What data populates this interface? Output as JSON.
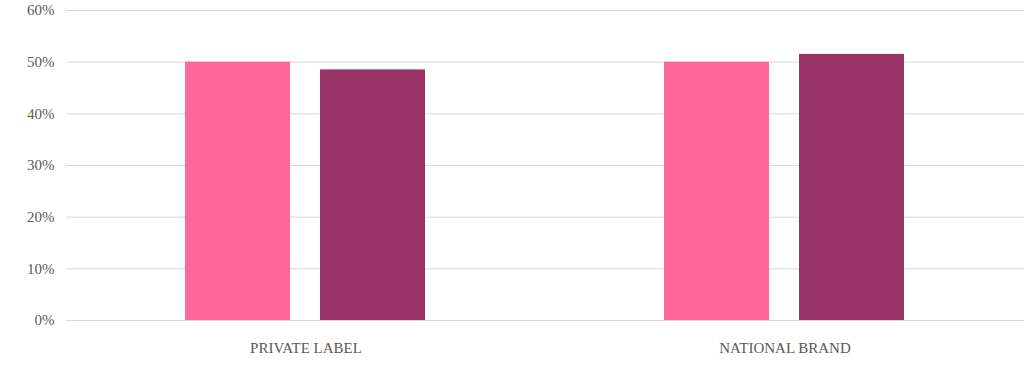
{
  "chart_data": {
    "type": "bar",
    "categories": [
      "PRIVATE LABEL",
      "NATIONAL BRAND"
    ],
    "series": [
      {
        "color": "#ff6699",
        "values": [
          50,
          50
        ]
      },
      {
        "color": "#993366",
        "values": [
          48.5,
          51.5
        ]
      }
    ],
    "ylim": [
      0,
      60
    ],
    "yticks": [
      {
        "value": 0,
        "label": "0%"
      },
      {
        "value": 10,
        "label": "10%"
      },
      {
        "value": 20,
        "label": "20%"
      },
      {
        "value": 30,
        "label": "30%"
      },
      {
        "value": 40,
        "label": "40%"
      },
      {
        "value": 50,
        "label": "50%"
      },
      {
        "value": 60,
        "label": "60%"
      }
    ],
    "grid": true
  }
}
